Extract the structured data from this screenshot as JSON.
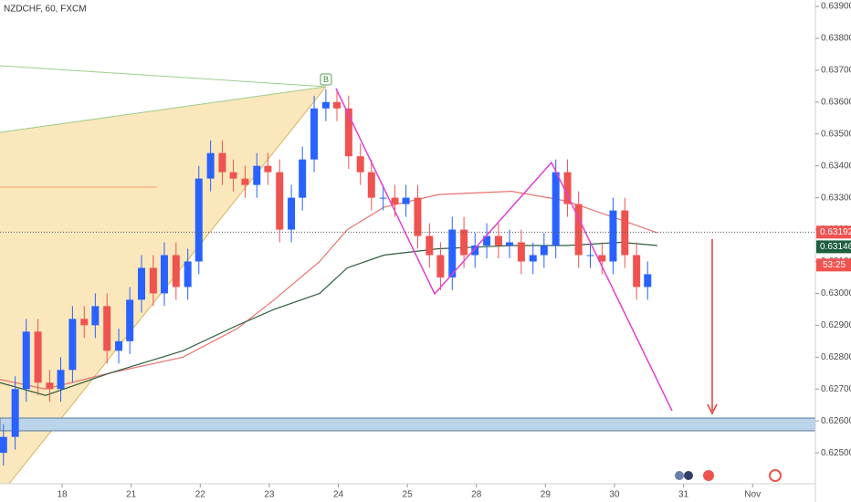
{
  "chart_data": {
    "type": "candlestick",
    "title": "NZDCHF, 60, FXCM",
    "up_color": "#2962ff",
    "down_color": "#ef5350",
    "x": [
      -0.85,
      -0.68,
      -0.52,
      -0.35,
      -0.18,
      -0.02,
      0.15,
      0.32,
      0.48,
      0.65,
      0.82,
      0.98,
      1.15,
      1.32,
      1.48,
      1.65,
      1.82,
      1.98,
      2.15,
      2.32,
      2.48,
      2.65,
      2.82,
      2.98,
      3.15,
      3.32,
      3.48,
      3.65,
      3.82,
      3.98,
      4.15,
      4.32,
      4.48,
      4.65,
      4.82,
      4.98,
      5.15,
      5.32,
      5.48,
      5.65,
      5.82,
      5.98,
      6.15,
      6.32,
      6.48,
      6.65,
      6.82,
      6.98,
      7.15,
      7.32,
      7.48,
      7.65,
      7.82,
      7.98,
      8.15,
      8.32,
      8.48
    ],
    "open": [
      0.625,
      0.6255,
      0.627,
      0.6288,
      0.6272,
      0.627,
      0.6276,
      0.6292,
      0.629,
      0.6296,
      0.6282,
      0.6285,
      0.6298,
      0.6308,
      0.63,
      0.6312,
      0.6302,
      0.631,
      0.6336,
      0.6344,
      0.6338,
      0.6336,
      0.6334,
      0.634,
      0.6338,
      0.632,
      0.633,
      0.6342,
      0.6358,
      0.636,
      0.6358,
      0.6343,
      0.6338,
      0.633,
      0.633,
      0.6328,
      0.633,
      0.6318,
      0.6312,
      0.6305,
      0.632,
      0.6312,
      0.6315,
      0.6318,
      0.6315,
      0.6316,
      0.631,
      0.6312,
      0.6315,
      0.6338,
      0.6328,
      0.6312,
      0.6312,
      0.631,
      0.6326,
      0.6312,
      0.6302
    ],
    "high": [
      0.6259,
      0.6274,
      0.6292,
      0.6292,
      0.6276,
      0.628,
      0.6296,
      0.6296,
      0.63,
      0.63,
      0.6289,
      0.6302,
      0.6312,
      0.6312,
      0.6316,
      0.6316,
      0.6314,
      0.634,
      0.6348,
      0.6348,
      0.6342,
      0.634,
      0.6344,
      0.6344,
      0.6342,
      0.6334,
      0.6346,
      0.6362,
      0.6364,
      0.6364,
      0.6362,
      0.6347,
      0.6342,
      0.6334,
      0.6334,
      0.6334,
      0.6334,
      0.6322,
      0.6316,
      0.6324,
      0.6324,
      0.6319,
      0.6322,
      0.6322,
      0.632,
      0.632,
      0.6316,
      0.6319,
      0.6342,
      0.6342,
      0.6332,
      0.6316,
      0.6316,
      0.633,
      0.633,
      0.6316,
      0.631
    ],
    "low": [
      0.6246,
      0.6251,
      0.6266,
      0.6268,
      0.6266,
      0.6266,
      0.6272,
      0.6286,
      0.6286,
      0.6278,
      0.6278,
      0.6281,
      0.6294,
      0.6296,
      0.6296,
      0.6298,
      0.6298,
      0.6306,
      0.6332,
      0.6334,
      0.6332,
      0.633,
      0.633,
      0.6334,
      0.6316,
      0.6316,
      0.6326,
      0.6338,
      0.6354,
      0.6354,
      0.6339,
      0.6334,
      0.6326,
      0.6326,
      0.6324,
      0.6324,
      0.6314,
      0.6308,
      0.6301,
      0.6301,
      0.6308,
      0.6308,
      0.6311,
      0.6311,
      0.6311,
      0.6306,
      0.6306,
      0.6308,
      0.6311,
      0.6324,
      0.6308,
      0.6308,
      0.6306,
      0.6306,
      0.6308,
      0.6298,
      0.6298
    ],
    "close": [
      0.6255,
      0.627,
      0.6288,
      0.6272,
      0.627,
      0.6276,
      0.6292,
      0.629,
      0.6296,
      0.6282,
      0.6285,
      0.6298,
      0.6308,
      0.63,
      0.6312,
      0.6302,
      0.631,
      0.6336,
      0.6344,
      0.6338,
      0.6336,
      0.6334,
      0.634,
      0.6338,
      0.632,
      0.633,
      0.6342,
      0.6358,
      0.636,
      0.6358,
      0.6343,
      0.6338,
      0.633,
      0.633,
      0.6328,
      0.633,
      0.6318,
      0.6312,
      0.6305,
      0.632,
      0.6312,
      0.6315,
      0.6318,
      0.6315,
      0.6316,
      0.631,
      0.6312,
      0.6315,
      0.6338,
      0.6328,
      0.6312,
      0.6312,
      0.631,
      0.6326,
      0.6312,
      0.6302,
      0.6306
    ],
    "overlays": [
      {
        "color": "#e8736f",
        "x": [
          -0.9,
          -0.24,
          0.69,
          1.75,
          2.54,
          3.07,
          3.73,
          4.13,
          4.66,
          5.45,
          6.51,
          7.3,
          8.1,
          8.62
        ],
        "values": [
          0.6273,
          0.627,
          0.6275,
          0.628,
          0.6289,
          0.6298,
          0.631,
          0.632,
          0.6327,
          0.6331,
          0.6332,
          0.6329,
          0.6323,
          0.6319
        ]
      },
      {
        "color": "#2e5e3e",
        "x": [
          -0.9,
          -0.24,
          0.69,
          1.75,
          2.54,
          3.07,
          3.73,
          4.13,
          4.66,
          5.45,
          6.51,
          7.3,
          8.1,
          8.62
        ],
        "values": [
          0.6272,
          0.6268,
          0.6275,
          0.6282,
          0.629,
          0.6295,
          0.63,
          0.6308,
          0.6312,
          0.6314,
          0.6315,
          0.6315,
          0.6316,
          0.6315
        ]
      }
    ],
    "xlim": [
      -0.9,
      10.91
    ],
    "xticks": [
      {
        "value": 0,
        "label": "18"
      },
      {
        "value": 1,
        "label": "21"
      },
      {
        "value": 2,
        "label": "22"
      },
      {
        "value": 3,
        "label": "23"
      },
      {
        "value": 4,
        "label": "24"
      },
      {
        "value": 5,
        "label": "25"
      },
      {
        "value": 6,
        "label": "28"
      },
      {
        "value": 7,
        "label": "29"
      },
      {
        "value": 8,
        "label": "30"
      },
      {
        "value": 9,
        "label": "31"
      },
      {
        "value": 10,
        "label": "Nov"
      }
    ],
    "ylim": [
      0.62403,
      0.6392
    ],
    "yticks": [
      {
        "value": 0.625,
        "label": "0.62500"
      },
      {
        "value": 0.626,
        "label": "0.62600"
      },
      {
        "value": 0.627,
        "label": "0.62700"
      },
      {
        "value": 0.628,
        "label": "0.62800"
      },
      {
        "value": 0.629,
        "label": "0.62900"
      },
      {
        "value": 0.63,
        "label": "0.63000"
      },
      {
        "value": 0.631,
        "label": "0.63100"
      },
      {
        "value": 0.632,
        "label": "0.63200"
      },
      {
        "value": 0.633,
        "label": "0.63300"
      },
      {
        "value": 0.634,
        "label": "0.63400"
      },
      {
        "value": 0.635,
        "label": "0.63500"
      },
      {
        "value": 0.636,
        "label": "0.63600"
      },
      {
        "value": 0.637,
        "label": "0.63700"
      },
      {
        "value": 0.638,
        "label": "0.63800"
      },
      {
        "value": 0.639,
        "label": "0.63900"
      }
    ],
    "price_labels": [
      {
        "value": 0.63192,
        "color": "#ef5350"
      },
      {
        "value": 0.63146,
        "color": "#1e5e3e"
      }
    ],
    "countdown": "53:25",
    "pattern_point": "B"
  }
}
